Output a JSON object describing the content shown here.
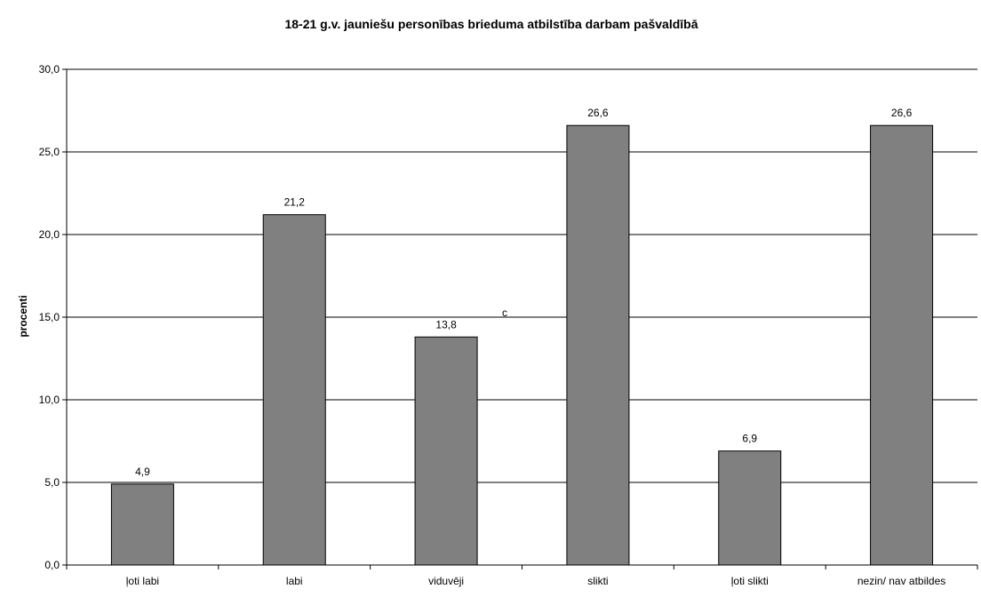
{
  "chart_data": {
    "type": "bar",
    "title": "18-21 g.v. jauniešu personības brieduma atbilstība darbam pašvaldībā",
    "xlabel": "",
    "ylabel": "procenti",
    "categories": [
      "ļoti labi",
      "labi",
      "viduvēji",
      "slikti",
      "ļoti slikti",
      "nezin/ nav atbildes"
    ],
    "values": [
      4.9,
      21.2,
      13.8,
      26.6,
      6.9,
      26.6
    ],
    "value_labels": [
      "4,9",
      "21,2",
      "13,8",
      "26,6",
      "6,9",
      "26,6"
    ],
    "ylim": [
      0,
      30
    ],
    "yticks": [
      0,
      5,
      10,
      15,
      20,
      25,
      30
    ],
    "ytick_labels": [
      "0,0",
      "5,0",
      "10,0",
      "15,0",
      "20,0",
      "25,0",
      "30,0"
    ],
    "grid": true,
    "annotation": "c",
    "colors": {
      "bar": "#808080",
      "bar_stroke": "#000000",
      "grid": "#000000",
      "axis": "#000000"
    }
  }
}
